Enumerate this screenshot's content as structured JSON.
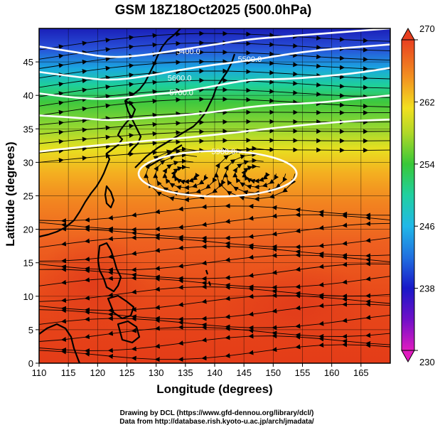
{
  "title": "GSM 18Z18Oct2025 (500.0hPa)",
  "xlabel": "Longitude (degrees)",
  "ylabel": "Latitude  (degrees)",
  "credits": {
    "line1": "Drawing by DCL (https://www.gfd-dennou.org/library/dcl/)",
    "line2": "Data from http://database.rish.kyoto-u.ac.jp/arch/jmadata/"
  },
  "chart_data": {
    "type": "heatmap",
    "description_field": "temperature shading with geopotential height contours and wind streamlines",
    "xlim": [
      110,
      170
    ],
    "ylim": [
      0,
      50
    ],
    "x_ticks": [
      110,
      115,
      120,
      125,
      130,
      135,
      140,
      145,
      150,
      155,
      160,
      165
    ],
    "x_tick_labels": [
      "110",
      "115",
      "120",
      "125",
      "130",
      "135",
      "140",
      "145",
      "150",
      "155",
      "160",
      "165"
    ],
    "y_ticks": [
      0,
      5,
      10,
      15,
      20,
      25,
      30,
      35,
      40,
      45
    ],
    "y_tick_labels": [
      "0",
      "5",
      "10",
      "15",
      "20",
      "25",
      "30",
      "35",
      "40",
      "45"
    ],
    "colorbar": {
      "min": 230,
      "max": 270,
      "ticks": [
        230,
        238,
        246,
        254,
        262,
        270
      ],
      "tick_labels": [
        "230",
        "238",
        "246",
        "254",
        "262",
        "270"
      ]
    },
    "contour_labels": [
      {
        "text": "5400.0",
        "lon": 135.5,
        "lat": 46.2
      },
      {
        "text": "5500.0",
        "lon": 146.0,
        "lat": 45.0
      },
      {
        "text": "5600.0",
        "lon": 134.0,
        "lat": 42.2
      },
      {
        "text": "5700.0",
        "lon": 134.3,
        "lat": 40.0
      },
      {
        "text": "5900.0",
        "lon": 141.5,
        "lat": 31.2
      }
    ],
    "contours": [
      {
        "name": "5400.0",
        "points": [
          [
            110,
            47.3
          ],
          [
            116,
            46.5
          ],
          [
            122,
            45.6
          ],
          [
            128,
            46.0
          ],
          [
            134,
            46.8
          ],
          [
            140,
            47.6
          ],
          [
            146,
            48.4
          ],
          [
            152,
            48.8
          ],
          [
            158,
            49.2
          ],
          [
            164,
            49.6
          ],
          [
            170,
            50
          ]
        ]
      },
      {
        "name": "5500.0",
        "points": [
          [
            110,
            43.5
          ],
          [
            116,
            42.8
          ],
          [
            122,
            42.2
          ],
          [
            128,
            42.8
          ],
          [
            134,
            43.8
          ],
          [
            140,
            44.6
          ],
          [
            146,
            45.2
          ],
          [
            152,
            46.1
          ],
          [
            158,
            46.8
          ],
          [
            164,
            47.2
          ],
          [
            170,
            47.6
          ]
        ]
      },
      {
        "name": "5600.0",
        "points": [
          [
            110,
            40.3
          ],
          [
            116,
            39.6
          ],
          [
            122,
            39.4
          ],
          [
            128,
            40.0
          ],
          [
            134,
            40.5
          ],
          [
            140,
            41.4
          ],
          [
            146,
            42.4
          ],
          [
            152,
            42.4
          ],
          [
            158,
            42.8
          ],
          [
            164,
            43.3
          ],
          [
            170,
            44.1
          ]
        ]
      },
      {
        "name": "5700.0",
        "points": [
          [
            110,
            37.0
          ],
          [
            116,
            36.7
          ],
          [
            122,
            36.2
          ],
          [
            128,
            36.6
          ],
          [
            134,
            37.0
          ],
          [
            140,
            37.5
          ],
          [
            146,
            38.3
          ],
          [
            152,
            38.7
          ],
          [
            158,
            38.9
          ],
          [
            164,
            39.5
          ],
          [
            170,
            40.0
          ]
        ]
      },
      {
        "name": "5800.0",
        "points": [
          [
            110,
            31.6
          ],
          [
            116,
            32.2
          ],
          [
            122,
            32.7
          ],
          [
            128,
            33.2
          ],
          [
            134,
            33.6
          ],
          [
            140,
            34.1
          ],
          [
            146,
            34.7
          ],
          [
            152,
            35.3
          ],
          [
            158,
            35.8
          ],
          [
            164,
            36.2
          ],
          [
            170,
            36.4
          ]
        ]
      }
    ],
    "high_contour": {
      "name": "5900.0",
      "center_lon": 140.5,
      "center_lat": 28.3,
      "radius_lon": 13.5,
      "radius_lat": 3.4
    },
    "anticyclone_centers": [
      {
        "lon": 135.0,
        "lat": 28.2
      },
      {
        "lon": 147.0,
        "lat": 28.3
      }
    ],
    "colors": {
      "cold": "#1e2fd0",
      "cool": "#14c2d8",
      "mild": "#3ec83e",
      "warm_yellow": "#f2e41e",
      "warm_orange": "#f2881e",
      "hot": "#e8421a",
      "contour": "#ffffff",
      "streamline": "#000000"
    }
  }
}
